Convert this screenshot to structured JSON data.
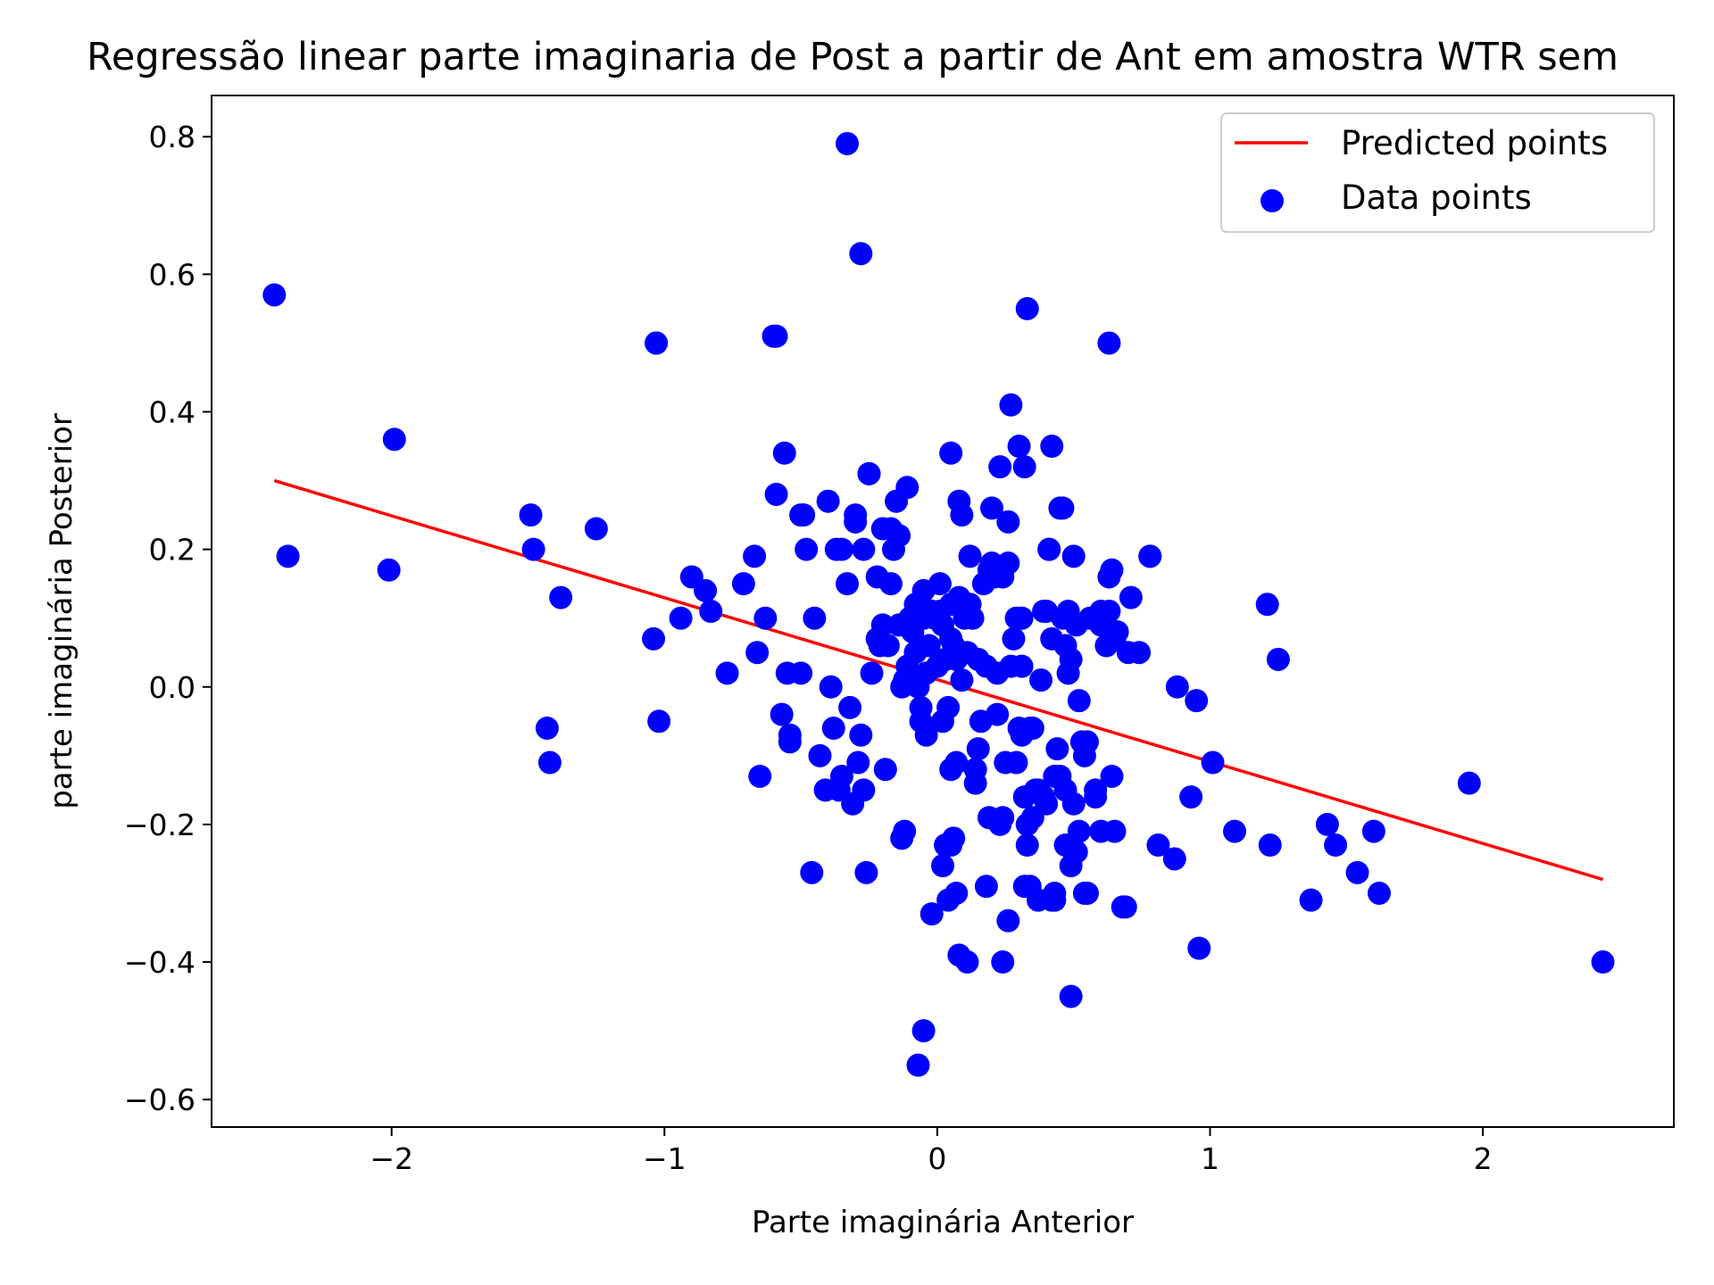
{
  "chart_data": {
    "type": "scatter",
    "title": "Regressão linear parte imaginaria de Post a partir de Ant em amostra WTR sem",
    "xlabel": "Parte imaginária Anterior",
    "ylabel": "parte imaginária Posterior",
    "xlim": [
      -2.66,
      2.7
    ],
    "ylim": [
      -0.64,
      0.86
    ],
    "xticks": [
      -2,
      -1,
      0,
      1,
      2
    ],
    "xtick_labels": [
      "−2",
      "−1",
      "0",
      "1",
      "2"
    ],
    "yticks": [
      -0.6,
      -0.4,
      -0.2,
      0.0,
      0.2,
      0.4,
      0.6,
      0.8
    ],
    "ytick_labels": [
      "−0.6",
      "−0.4",
      "−0.2",
      "0.0",
      "0.2",
      "0.4",
      "0.6",
      "0.8"
    ],
    "grid": false,
    "legend_position": "top-right",
    "colors": {
      "line": "#ff0000",
      "points": "#0000ff",
      "axes": "#000000"
    },
    "series": [
      {
        "name": "Predicted points",
        "kind": "line",
        "x": [
          -2.43,
          2.44
        ],
        "y": [
          0.3,
          -0.28
        ]
      },
      {
        "name": "Data points",
        "kind": "scatter",
        "x": [
          -2.43,
          -2.38,
          -1.99,
          -2.01,
          -1.49,
          -1.48,
          -1.38,
          -1.25,
          -1.43,
          -1.42,
          -1.03,
          -1.04,
          -1.02,
          -0.94,
          -0.9,
          -0.85,
          -0.83,
          -0.77,
          -0.71,
          -0.66,
          -0.67,
          -0.65,
          -0.63,
          -0.6,
          -0.59,
          -0.57,
          -0.56,
          -0.55,
          -0.54,
          -0.54,
          -0.5,
          -0.49,
          -0.48,
          -0.46,
          -0.45,
          -0.43,
          -0.39,
          -0.4,
          -0.38,
          -0.36,
          -0.35,
          -0.33,
          -0.32,
          -0.3,
          -0.29,
          -0.28,
          -0.27,
          -0.25,
          -0.24,
          -0.22,
          -0.21,
          -0.2,
          -0.19,
          -0.18,
          -0.17,
          -0.16,
          -0.15,
          -0.14,
          -0.13,
          -0.12,
          -0.11,
          -0.1,
          -0.09,
          -0.08,
          -0.07,
          -0.06,
          -0.05,
          -0.04,
          -0.03,
          -0.02,
          -0.01,
          0.0,
          0.01,
          0.02,
          0.03,
          0.04,
          0.05,
          0.06,
          0.07,
          0.08,
          0.09,
          0.1,
          0.11,
          0.12,
          0.13,
          0.14,
          0.15,
          0.16,
          0.17,
          0.18,
          0.19,
          0.2,
          0.21,
          0.22,
          0.23,
          0.24,
          0.25,
          0.26,
          0.27,
          0.28,
          0.29,
          0.3,
          0.31,
          0.32,
          0.33,
          0.34,
          0.35,
          0.36,
          0.38,
          0.39,
          0.4,
          0.41,
          0.42,
          0.43,
          0.44,
          0.45,
          0.46,
          0.47,
          0.48,
          0.49,
          0.5,
          0.51,
          0.52,
          0.53,
          0.54,
          0.56,
          0.58,
          0.6,
          0.62,
          0.63,
          0.64,
          0.65,
          0.66,
          0.68,
          0.7,
          0.71,
          0.74,
          0.78,
          0.81,
          0.87,
          0.88,
          0.93,
          0.95,
          0.96,
          1.01,
          1.09,
          1.21,
          1.22,
          1.25,
          1.37,
          1.43,
          1.46,
          1.54,
          1.6,
          1.62,
          1.95,
          2.44,
          -0.33,
          -0.28,
          -0.59,
          0.33,
          0.63,
          0.27,
          -1.03,
          0.42,
          0.3,
          0.05,
          0.23,
          -0.25,
          -0.11,
          0.32,
          0.46,
          -0.5,
          0.08,
          0.2,
          0.26,
          -0.3,
          -0.14,
          0.09,
          -0.17,
          0.41,
          -0.37,
          0.5,
          0.19,
          -0.27,
          -0.2,
          0.64,
          0.78,
          -0.08,
          0.31,
          0.48,
          0.01,
          0.4,
          0.63,
          0.12,
          -0.05,
          -0.1,
          0.6,
          0.05,
          -0.22,
          0.02,
          0.22,
          0.35,
          0.55,
          -0.06,
          0.15,
          -0.04,
          0.47,
          0.29,
          0.54,
          0.05,
          -0.13,
          -0.41,
          -0.35,
          0.31,
          0.45,
          0.39,
          0.5,
          0.14,
          0.58,
          0.24,
          0.37,
          0.07,
          -0.31,
          0.34,
          0.05,
          -0.26,
          0.47,
          0.42,
          0.51,
          0.04,
          0.07,
          0.26,
          0.33,
          0.52,
          0.18,
          0.37,
          0.11,
          -0.12,
          0.6,
          0.43,
          0.69,
          0.65,
          0.49,
          0.55,
          0.32,
          0.43,
          -0.02,
          0.08,
          0.06,
          0.03,
          0.24,
          -0.05,
          0.49,
          -0.07,
          0.02
        ],
        "y": [
          0.57,
          0.19,
          0.36,
          0.17,
          0.25,
          0.2,
          0.13,
          0.23,
          -0.06,
          -0.11,
          0.5,
          0.07,
          -0.05,
          0.1,
          0.16,
          0.14,
          0.11,
          0.02,
          0.15,
          0.05,
          0.19,
          -0.13,
          0.1,
          0.51,
          0.28,
          -0.04,
          0.34,
          0.02,
          -0.07,
          -0.08,
          0.02,
          0.25,
          0.2,
          -0.27,
          0.1,
          -0.1,
          0.0,
          0.27,
          -0.06,
          -0.15,
          0.2,
          0.15,
          -0.03,
          0.25,
          -0.11,
          -0.07,
          -0.15,
          0.31,
          0.02,
          0.16,
          0.06,
          0.09,
          -0.12,
          0.06,
          0.15,
          0.2,
          0.27,
          0.09,
          0.0,
          0.01,
          0.03,
          0.1,
          0.08,
          0.05,
          0.0,
          -0.03,
          0.14,
          0.02,
          0.06,
          0.11,
          0.1,
          0.03,
          0.15,
          0.09,
          0.04,
          -0.03,
          0.12,
          0.06,
          0.04,
          0.13,
          0.01,
          0.1,
          0.05,
          0.19,
          0.1,
          -0.12,
          0.04,
          -0.05,
          0.15,
          0.03,
          -0.19,
          0.18,
          0.16,
          0.02,
          -0.2,
          0.16,
          -0.11,
          0.18,
          0.03,
          0.07,
          0.1,
          -0.06,
          0.03,
          -0.16,
          -0.23,
          -0.06,
          -0.19,
          -0.15,
          0.01,
          0.11,
          -0.17,
          0.2,
          0.07,
          -0.13,
          -0.09,
          0.26,
          0.1,
          0.06,
          0.02,
          0.04,
          -0.24,
          0.09,
          -0.02,
          -0.08,
          -0.3,
          0.1,
          -0.15,
          0.11,
          0.06,
          0.16,
          -0.13,
          0.07,
          0.08,
          -0.32,
          0.05,
          0.13,
          0.05,
          0.19,
          -0.23,
          -0.25,
          0.0,
          -0.16,
          -0.02,
          -0.38,
          -0.11,
          -0.21,
          0.12,
          -0.23,
          0.04,
          -0.31,
          -0.2,
          -0.23,
          -0.27,
          -0.21,
          -0.3,
          -0.14,
          -0.4,
          0.79,
          0.63,
          0.51,
          0.55,
          0.5,
          0.41,
          0.5,
          0.35,
          0.35,
          0.34,
          0.32,
          0.31,
          0.29,
          0.32,
          0.26,
          0.25,
          0.27,
          0.26,
          0.24,
          0.24,
          0.22,
          0.25,
          0.23,
          0.2,
          0.2,
          0.19,
          0.17,
          0.2,
          0.23,
          0.17,
          0.19,
          0.12,
          0.1,
          0.11,
          0.11,
          0.11,
          0.11,
          0.12,
          0.1,
          0.09,
          0.09,
          0.07,
          0.07,
          -0.05,
          -0.04,
          -0.06,
          -0.08,
          -0.05,
          -0.09,
          -0.07,
          -0.15,
          -0.11,
          -0.1,
          -0.12,
          -0.22,
          -0.15,
          -0.13,
          -0.07,
          -0.13,
          -0.16,
          -0.17,
          -0.14,
          -0.16,
          -0.19,
          -0.15,
          -0.11,
          -0.17,
          -0.29,
          -0.23,
          -0.27,
          -0.23,
          -0.31,
          -0.24,
          -0.31,
          -0.3,
          -0.34,
          -0.2,
          -0.21,
          -0.29,
          -0.31,
          -0.4,
          -0.21,
          -0.21,
          -0.3,
          -0.32,
          -0.21,
          -0.45,
          -0.3,
          -0.29,
          -0.31,
          -0.33,
          -0.39,
          -0.22,
          -0.23,
          -0.4,
          -0.5,
          -0.26,
          -0.55,
          -0.26
        ]
      }
    ]
  }
}
